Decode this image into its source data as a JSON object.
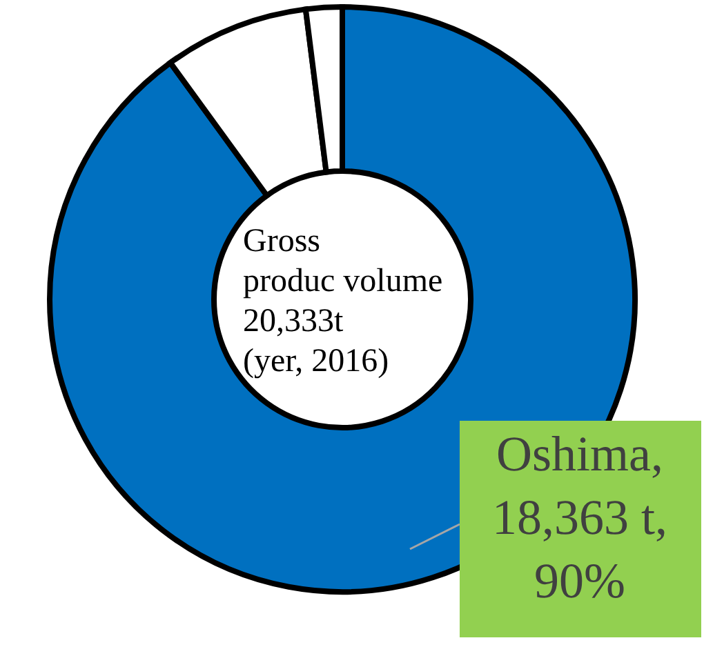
{
  "chart_data": {
    "type": "donut",
    "categories": [
      "Oshima",
      null,
      null
    ],
    "values": [
      90,
      8,
      2
    ],
    "colors": [
      "#0070c0",
      "#ffffff",
      "#ffffff"
    ],
    "value_labels": [
      ",\n18,363 t,\n90%",
      null,
      null
    ],
    "annotations": [
      "Gross\nproduc volume\n20,333t\n(yer, 2016)"
    ]
  }
}
